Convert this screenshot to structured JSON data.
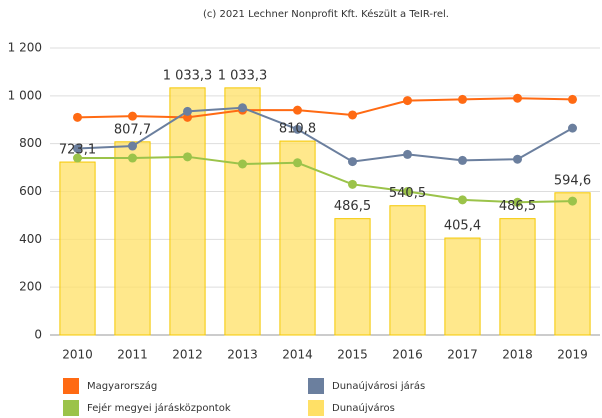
{
  "chart_data": {
    "type": "bar",
    "subtitle": "(c) 2021 Lechner Nonprofit Kft. Készült a TeIR-rel.",
    "categories": [
      "2010",
      "2011",
      "2012",
      "2013",
      "2014",
      "2015",
      "2016",
      "2017",
      "2018",
      "2019"
    ],
    "ylim": [
      0,
      1200
    ],
    "yticks": [
      0,
      200,
      400,
      600,
      800,
      {
        "value": 1000,
        "label": "1 000"
      },
      {
        "value": 1200,
        "label": "1 200"
      }
    ],
    "grid": true,
    "series": [
      {
        "name": "Magyarország",
        "type": "line",
        "color": "#ff6a13",
        "values": [
          910,
          915,
          910,
          940,
          940,
          920,
          980,
          985,
          990,
          985
        ]
      },
      {
        "name": "Dunaújvárosi járás",
        "type": "line",
        "color": "#6b7f9e",
        "values": [
          780,
          790,
          935,
          950,
          860,
          725,
          755,
          730,
          735,
          865
        ]
      },
      {
        "name": "Fejér megyei járásközpontok",
        "type": "line",
        "color": "#9bc34a",
        "values": [
          740,
          740,
          745,
          715,
          720,
          630,
          600,
          565,
          555,
          560
        ]
      },
      {
        "name": "Dunaújváros",
        "type": "bar",
        "color": "#ffe066",
        "values": [
          723.1,
          807.7,
          1033.3,
          1033.3,
          810.8,
          486.5,
          540.5,
          405.4,
          486.5,
          594.6
        ],
        "value_labels": [
          "723,1",
          "807,7",
          "1 033,3",
          "1 033,3",
          "810,8",
          "486,5",
          "540,5",
          "405,4",
          "486,5",
          "594,6"
        ]
      }
    ]
  }
}
